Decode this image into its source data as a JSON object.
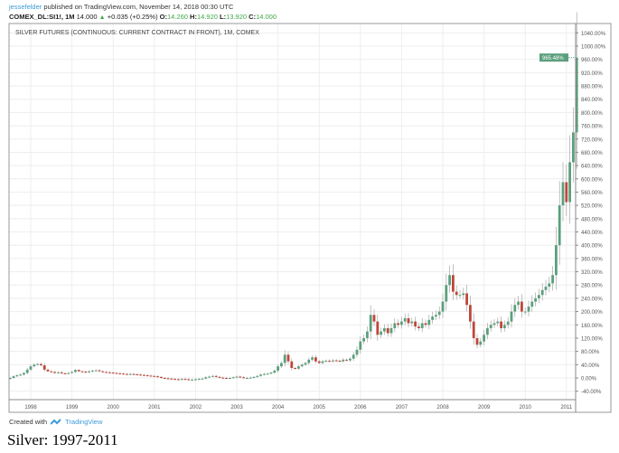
{
  "header": {
    "user": "jessefelder",
    "published": "published on TradingView.com, November 14, 2018 00:30 UTC",
    "symbol": "COMEX_DL:SI1!, 1M",
    "last": "14.000",
    "change": "+0.035 (+0.25%)",
    "o_label": "O:",
    "o": "14.260",
    "h_label": "H:",
    "h": "14.920",
    "l_label": "L:",
    "l": "13.920",
    "c_label": "C:",
    "c": "14.000"
  },
  "footer": {
    "created_with": "Created with",
    "brand": "TradingView"
  },
  "caption": "Silver: 1997-2011",
  "colors": {
    "up": "#5b9f7c",
    "down": "#c0463a",
    "grid": "#eeeeee",
    "label_bg": "#5b9f7c",
    "link": "#3a9ad9"
  },
  "chart_data": {
    "type": "candlestick",
    "title": "SILVER FUTURES (CONTINUOUS: CURRENT CONTRACT IN FRONT), 1M, COMEX",
    "start_month": "1997-07",
    "interval": "1M",
    "y_unit": "%",
    "ylim": [
      -60,
      1060
    ],
    "y_ticks": [
      -40,
      0,
      40,
      80,
      120,
      160,
      200,
      240,
      280,
      320,
      360,
      400,
      440,
      480,
      520,
      560,
      600,
      640,
      680,
      720,
      760,
      800,
      840,
      880,
      920,
      960,
      1000,
      1040
    ],
    "x_ticks": [
      "1998",
      "1999",
      "2000",
      "2001",
      "2002",
      "2003",
      "2004",
      "2005",
      "2006",
      "2007",
      "2008",
      "2009",
      "2010",
      "2011"
    ],
    "grid": true,
    "last_value_label": "965.48%",
    "last_value": 965.48,
    "closes": [
      0,
      5,
      8,
      10,
      15,
      25,
      35,
      40,
      42,
      38,
      25,
      20,
      18,
      15,
      17,
      14,
      13,
      15,
      18,
      24,
      20,
      19,
      17,
      20,
      22,
      23,
      20,
      18,
      17,
      16,
      15,
      14,
      13,
      12,
      11,
      12,
      11,
      10,
      9,
      8,
      7,
      6,
      5,
      3,
      0,
      -1,
      -2,
      -3,
      -4,
      -5,
      -3,
      -4,
      -6,
      -5,
      -4,
      -3,
      -2,
      2,
      4,
      6,
      3,
      1,
      0,
      -1,
      0,
      2,
      4,
      2,
      0,
      0,
      1,
      3,
      6,
      10,
      12,
      13,
      16,
      22,
      35,
      45,
      70,
      50,
      30,
      28,
      35,
      40,
      45,
      55,
      62,
      50,
      45,
      50,
      52,
      50,
      53,
      52,
      50,
      55,
      53,
      58,
      70,
      85,
      110,
      120,
      140,
      190,
      170,
      130,
      140,
      150,
      135,
      150,
      165,
      160,
      170,
      180,
      165,
      170,
      155,
      150,
      165,
      160,
      175,
      185,
      190,
      200,
      230,
      280,
      310,
      260,
      250,
      250,
      255,
      220,
      170,
      120,
      100,
      110,
      130,
      150,
      160,
      165,
      170,
      150,
      160,
      170,
      200,
      220,
      230,
      200,
      200,
      215,
      230,
      240,
      250,
      265,
      275,
      285,
      310,
      400,
      520,
      590,
      530,
      650,
      740,
      965.48
    ]
  }
}
